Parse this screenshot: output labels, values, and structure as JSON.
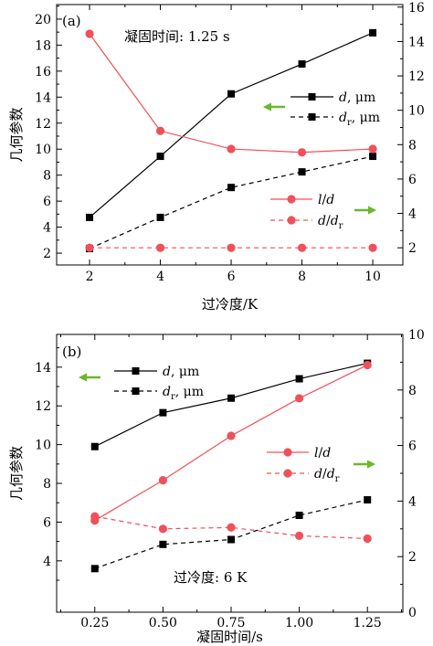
{
  "chart_data": [
    {
      "type": "line",
      "panel_label": "(a)",
      "annotation": "凝固时间: 1.25 s",
      "xlabel": "过冷度/K",
      "ylabel": "几何参数",
      "x": [
        2,
        4,
        6,
        8,
        10
      ],
      "xlim": [
        1.07,
        10.85
      ],
      "xtick_labels": [
        "2",
        "4",
        "6",
        "8",
        "10"
      ],
      "ylim": [
        1.09,
        21.12
      ],
      "ytick_labels": [
        "2",
        "4",
        "6",
        "8",
        "10",
        "12",
        "14",
        "16",
        "18",
        "20"
      ],
      "y2lim": [
        1.0,
        16.15
      ],
      "y2tick_labels": [
        "2",
        "4",
        "6",
        "8",
        "10",
        "12",
        "14",
        "16"
      ],
      "grid": false,
      "series": [
        {
          "label": [
            {
              "italic": "d"
            },
            {
              "plain": ", μm"
            }
          ],
          "axis": "left",
          "color": "#000000",
          "marker": "square",
          "line": "solid",
          "values": [
            4.75,
            9.45,
            14.25,
            16.55,
            18.95
          ]
        },
        {
          "label": [
            {
              "italic": "d"
            },
            {
              "sub": "r"
            },
            {
              "plain": ", μm"
            }
          ],
          "axis": "left",
          "color": "#000000",
          "marker": "square",
          "line": "dashed",
          "values": [
            2.35,
            4.75,
            7.05,
            8.25,
            9.45
          ]
        },
        {
          "label": [
            {
              "italic": "l"
            },
            {
              "plain": "/"
            },
            {
              "italic": "d"
            }
          ],
          "axis": "right",
          "color": "#f0505a",
          "marker": "circle",
          "line": "solid",
          "values": [
            14.45,
            8.8,
            7.75,
            7.55,
            7.75
          ]
        },
        {
          "label": [
            {
              "italic": "d"
            },
            {
              "plain": "/"
            },
            {
              "italic": "d"
            },
            {
              "sub": "r"
            }
          ],
          "axis": "right",
          "color": "#f0505a",
          "marker": "circle",
          "line": "dashed",
          "values": [
            2.0,
            2.0,
            2.0,
            2.0,
            2.0
          ]
        }
      ]
    },
    {
      "type": "line",
      "panel_label": "(b)",
      "annotation": "过冷度: 6 K",
      "xlabel": "凝固时间/s",
      "ylabel": "几何参数",
      "x": [
        0.25,
        0.5,
        0.75,
        1.0,
        1.25
      ],
      "xlim": [
        0.11,
        1.38
      ],
      "xtick_labels": [
        "0.25",
        "0.50",
        "0.75",
        "1.00",
        "1.25"
      ],
      "ylim": [
        1.35,
        15.69
      ],
      "ytick_labels": [
        "4",
        "6",
        "8",
        "10",
        "12",
        "14"
      ],
      "y2lim": [
        0,
        10
      ],
      "y2tick_labels": [
        "0",
        "2",
        "4",
        "6",
        "8",
        "10"
      ],
      "grid": false,
      "series": [
        {
          "label": [
            {
              "italic": "d"
            },
            {
              "plain": ", μm"
            }
          ],
          "axis": "left",
          "color": "#000000",
          "marker": "square",
          "line": "solid",
          "values": [
            9.9,
            11.65,
            12.4,
            13.4,
            14.2
          ]
        },
        {
          "label": [
            {
              "italic": "d"
            },
            {
              "sub": "r"
            },
            {
              "plain": ", μm"
            }
          ],
          "axis": "left",
          "color": "#000000",
          "marker": "square",
          "line": "dashed",
          "values": [
            3.6,
            4.85,
            5.1,
            6.35,
            7.15
          ]
        },
        {
          "label": [
            {
              "italic": "l"
            },
            {
              "plain": "/"
            },
            {
              "italic": "d"
            }
          ],
          "axis": "right",
          "color": "#f0505a",
          "marker": "circle",
          "line": "solid",
          "values": [
            3.3,
            4.75,
            6.35,
            7.7,
            8.9
          ]
        },
        {
          "label": [
            {
              "italic": "d"
            },
            {
              "plain": "/"
            },
            {
              "italic": "d"
            },
            {
              "sub": "r"
            }
          ],
          "axis": "right",
          "color": "#f0505a",
          "marker": "circle",
          "line": "dashed",
          "values": [
            3.45,
            3.0,
            3.05,
            2.75,
            2.65
          ]
        }
      ]
    }
  ],
  "colors": {
    "axis_arrow": "#6ab82a",
    "frame": "#000000"
  }
}
